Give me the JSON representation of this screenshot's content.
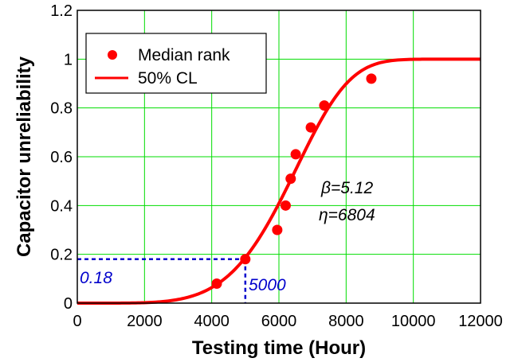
{
  "chart_data": {
    "type": "line",
    "xlabel": "Testing time (Hour)",
    "ylabel": "Capacitor unreliability",
    "xlim": [
      0,
      12000
    ],
    "ylim": [
      0,
      1.2
    ],
    "xticks": [
      0,
      2000,
      4000,
      6000,
      8000,
      10000,
      12000
    ],
    "xtick_labels": [
      "0",
      "2000",
      "4000",
      "6000",
      "8000",
      "10000",
      "12000"
    ],
    "yticks": [
      0,
      0.2,
      0.4,
      0.6,
      0.8,
      1,
      1.2
    ],
    "ytick_labels": [
      "0",
      "0.2",
      "0.4",
      "0.6",
      "0.8",
      "1",
      "1.2"
    ],
    "grid": true,
    "grid_color": "#00dd00",
    "legend_position": "top-left",
    "series": [
      {
        "name": "Median rank",
        "kind": "scatter",
        "color": "#ff0000",
        "points": [
          {
            "x": 4150,
            "y": 0.08
          },
          {
            "x": 5000,
            "y": 0.18
          },
          {
            "x": 5950,
            "y": 0.3
          },
          {
            "x": 6200,
            "y": 0.4
          },
          {
            "x": 6350,
            "y": 0.51
          },
          {
            "x": 6500,
            "y": 0.61
          },
          {
            "x": 6950,
            "y": 0.72
          },
          {
            "x": 7350,
            "y": 0.81
          },
          {
            "x": 8750,
            "y": 0.92
          }
        ]
      },
      {
        "name": "50% CL",
        "kind": "line",
        "color": "#ff0000",
        "weibull": {
          "beta": 5.12,
          "eta": 6804
        },
        "points": [
          {
            "x": 0,
            "y": 0
          },
          {
            "x": 2000,
            "y": 0.002
          },
          {
            "x": 3000,
            "y": 0.015
          },
          {
            "x": 4000,
            "y": 0.063
          },
          {
            "x": 5000,
            "y": 0.18
          },
          {
            "x": 6000,
            "y": 0.41
          },
          {
            "x": 7000,
            "y": 0.71
          },
          {
            "x": 8000,
            "y": 0.92
          },
          {
            "x": 9000,
            "y": 0.99
          },
          {
            "x": 10000,
            "y": 1.0
          },
          {
            "x": 12000,
            "y": 1.0
          }
        ]
      }
    ],
    "annotations": {
      "beta_text": "β=5.12",
      "eta_text": "η=6804",
      "ref_y_label": "0.18",
      "ref_x_label": "5000",
      "ref_point": {
        "x": 5000,
        "y": 0.18
      },
      "ref_color": "#0000cc",
      "text_color": "#000000"
    }
  }
}
